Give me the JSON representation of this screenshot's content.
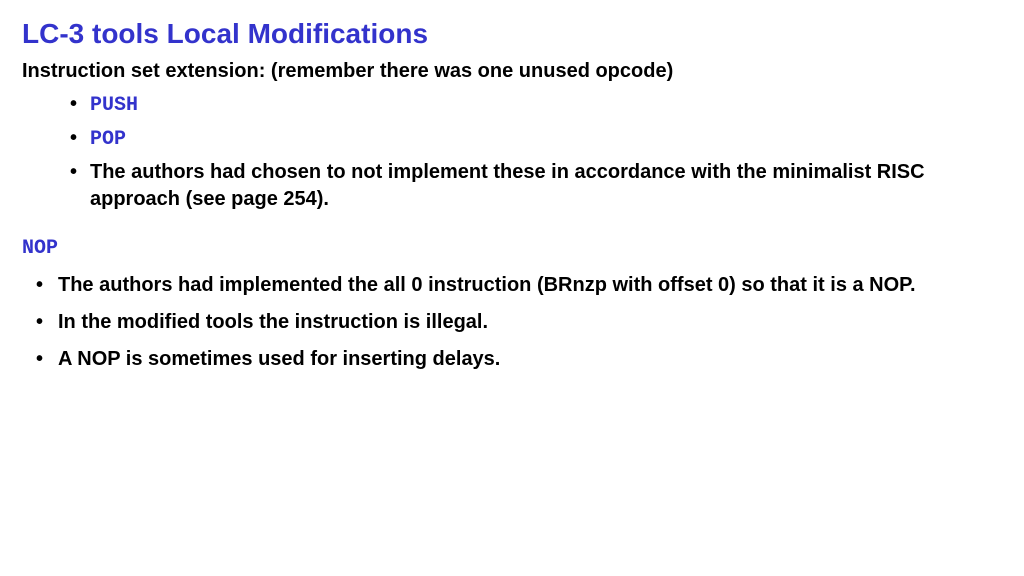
{
  "title": "LC-3 tools Local Modifications",
  "subtitle": "Instruction set extension: (remember there was one unused opcode)",
  "section1": {
    "items": [
      {
        "text": "PUSH",
        "style": "mono-blue"
      },
      {
        "text": "POP",
        "style": "mono-blue"
      },
      {
        "text": "The authors had chosen to not implement these in accordance with the minimalist RISC approach (see page 254).",
        "style": "bold-black"
      }
    ]
  },
  "heading2": "NOP",
  "section2": {
    "items": [
      {
        "text": "The authors had implemented the all 0 instruction (BRnzp with offset 0) so that it is a NOP."
      },
      {
        "text": "In the modified tools the instruction is illegal."
      },
      {
        "text": "A NOP is sometimes used for inserting delays."
      }
    ]
  },
  "colors": {
    "title_color": "#3333cc",
    "text_color": "#000000",
    "background": "#ffffff"
  },
  "typography": {
    "title_fontsize": 28,
    "body_fontsize": 20,
    "mono_family": "Courier New"
  }
}
